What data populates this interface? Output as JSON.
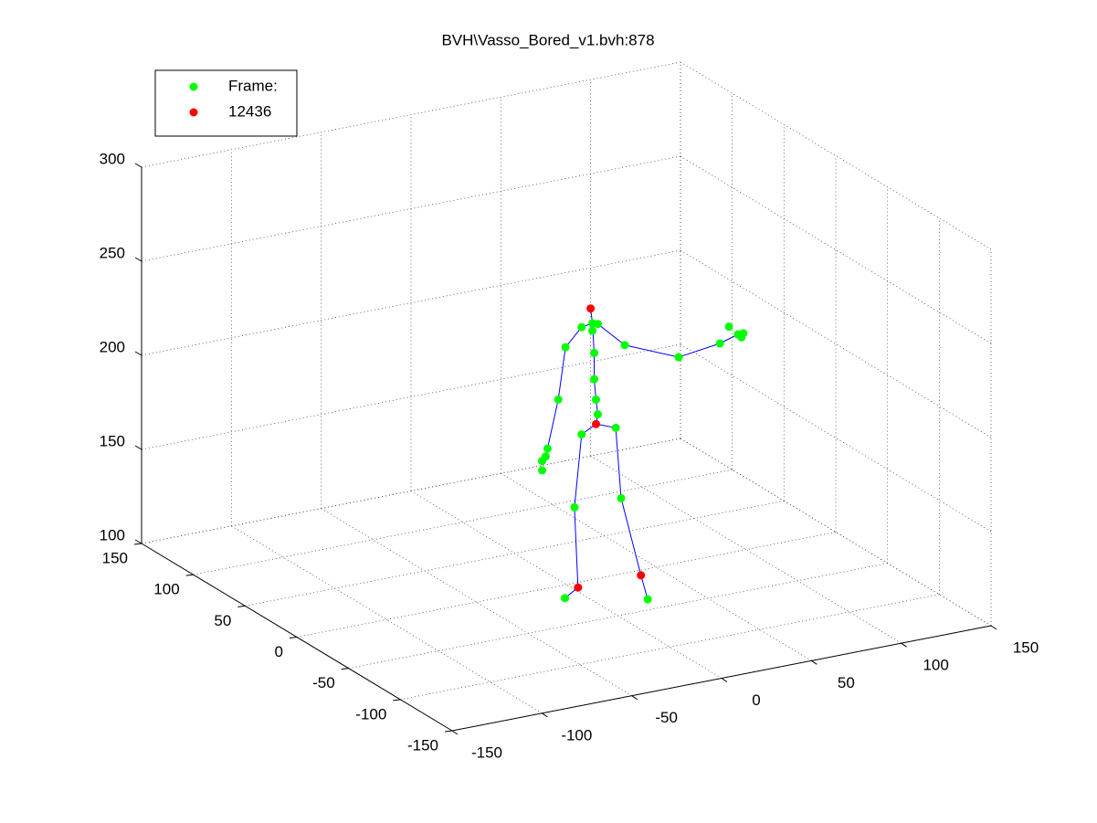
{
  "chart_data": {
    "type": "scatter3d",
    "title": "BVH\\Vasso_Bored_v1.bvh:878",
    "xlim": [
      -150,
      150
    ],
    "ylim": [
      -150,
      150
    ],
    "zlim": [
      100,
      300
    ],
    "xticks": [
      -150,
      -100,
      -50,
      0,
      50,
      100,
      150
    ],
    "yticks": [
      -150,
      -100,
      -50,
      0,
      50,
      100,
      150
    ],
    "zticks": [
      100,
      150,
      200,
      250,
      300
    ],
    "grid": true,
    "legend": "northwest",
    "lines": [
      {
        "color": "#0000ff",
        "x": [
          5,
          6,
          5,
          4,
          4,
          3,
          2
        ],
        "y": [
          -20,
          -20,
          -20,
          -20,
          -20,
          -20,
          -20
        ],
        "z": [
          191,
          196,
          204,
          215,
          229,
          245,
          253
        ]
      },
      {
        "color": "#0000ff",
        "x": [
          3,
          -3,
          -12,
          -16,
          -22,
          -23,
          -25
        ],
        "y": [
          -20,
          -20,
          -20,
          -20,
          -20,
          -20,
          -20
        ],
        "z": [
          245,
          244,
          235,
          208,
          183,
          179,
          177
        ]
      },
      {
        "color": "#0000ff",
        "x": [
          3,
          6,
          21,
          51,
          74,
          84
        ],
        "y": [
          -20,
          -20,
          -20,
          -20,
          -20,
          -20
        ],
        "z": [
          245,
          244,
          230,
          218,
          221,
          224
        ]
      },
      {
        "color": "#0000ff",
        "x": [
          5,
          -3,
          -7,
          -5,
          -10
        ],
        "y": [
          -20,
          -20,
          -20,
          -20,
          -16
        ],
        "z": [
          191,
          187,
          149,
          106,
          100
        ]
      },
      {
        "color": "#0000ff",
        "x": [
          5,
          16,
          19,
          30,
          24
        ],
        "y": [
          -20,
          -20,
          -20,
          -20,
          -37
        ],
        "z": [
          191,
          187,
          149,
          106,
          100
        ]
      }
    ],
    "series": [
      {
        "name": "Frame:",
        "color": "#00ff00",
        "x": [
          3,
          -3,
          6,
          3,
          -12,
          -16,
          -22,
          -23,
          -25,
          -25,
          21,
          51,
          74,
          79,
          84,
          87,
          86,
          4,
          4,
          5,
          6,
          -3,
          16,
          -7,
          19,
          -10,
          24
        ],
        "y": [
          -20,
          -20,
          -20,
          -20,
          -20,
          -20,
          -20,
          -20,
          -20,
          -20,
          -20,
          -20,
          -20,
          -20,
          -20,
          -20,
          -20,
          -20,
          -20,
          -20,
          -20,
          -20,
          -20,
          -20,
          -20,
          -16,
          -37
        ],
        "z": [
          245,
          244,
          244,
          241,
          235,
          208,
          183,
          179,
          177,
          172,
          230,
          218,
          221,
          229,
          224,
          224,
          222,
          229,
          215,
          204,
          196,
          187,
          187,
          149,
          149,
          100,
          100
        ]
      },
      {
        "name": "12436",
        "color": "#ff0000",
        "x": [
          2,
          5,
          -5,
          30
        ],
        "y": [
          -20,
          -20,
          -20,
          -20
        ],
        "z": [
          253,
          191,
          106,
          106
        ]
      }
    ]
  }
}
